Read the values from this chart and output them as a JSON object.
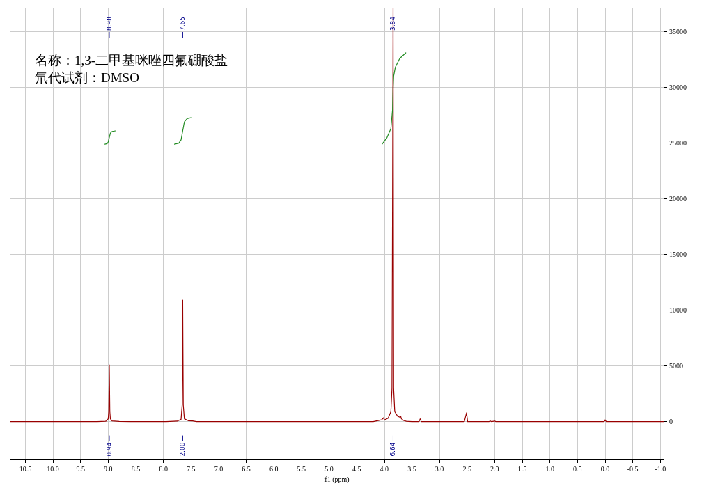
{
  "chart_data": {
    "type": "line",
    "title": "名称：1,3-二甲基咪唑四氟硼酸盐",
    "subtitle": "氘代试剂：DMSO",
    "xlabel": "f1 (ppm)",
    "xlim": [
      10.77,
      -1.06
    ],
    "xticks": [
      10.5,
      {
        "value": 10,
        "label": "10.0"
      },
      9.5,
      {
        "value": 9,
        "label": "9.0"
      },
      8.5,
      {
        "value": 8,
        "label": "8.0"
      },
      7.5,
      {
        "value": 7,
        "label": "7.0"
      },
      6.5,
      {
        "value": 6,
        "label": "6.0"
      },
      5.5,
      {
        "value": 5,
        "label": "5.0"
      },
      4.5,
      {
        "value": 4,
        "label": "4.0"
      },
      3.5,
      {
        "value": 3,
        "label": "3.0"
      },
      2.5,
      {
        "value": 2,
        "label": "2.0"
      },
      1.5,
      {
        "value": 1,
        "label": "1.0"
      },
      0.5,
      {
        "value": 0,
        "label": "0.0"
      },
      -0.5,
      {
        "value": -1,
        "label": "-1.0"
      }
    ],
    "ylim": [
      -3400,
      37100
    ],
    "yticks": [
      0,
      5000,
      10000,
      15000,
      20000,
      25000,
      30000,
      35000
    ],
    "grid": true,
    "marker": "none",
    "line_style": "solid",
    "series": [
      {
        "color": "#990000",
        "x": [
          10.77,
          9.2,
          9.05,
          9.03,
          9.0,
          8.99,
          8.98,
          8.97,
          8.96,
          8.93,
          8.8,
          8.6,
          7.95,
          7.75,
          7.68,
          7.66,
          7.65,
          7.64,
          7.62,
          7.55,
          7.47,
          7.4,
          4.2,
          4.05,
          4.01,
          4.0,
          3.93,
          3.88,
          3.86,
          3.84,
          3.83,
          3.81,
          3.76,
          3.72,
          3.7,
          3.69,
          3.65,
          3.6,
          3.5,
          3.37,
          3.35,
          3.33,
          2.55,
          2.51,
          2.49,
          2.1,
          2.08,
          2.06,
          2.0,
          1.98,
          0.02,
          0.0,
          -0.02,
          -1.06
        ],
        "values": [
          0,
          0,
          30,
          60,
          250,
          900,
          5100,
          900,
          250,
          60,
          20,
          0,
          0,
          40,
          200,
          1500,
          10900,
          1500,
          250,
          80,
          60,
          0,
          0,
          150,
          350,
          150,
          300,
          900,
          3000,
          37100,
          3000,
          900,
          500,
          400,
          450,
          250,
          100,
          30,
          0,
          0,
          250,
          0,
          0,
          800,
          0,
          0,
          60,
          0,
          50,
          0,
          0,
          150,
          0,
          0
        ]
      },
      {
        "color": "#228b22",
        "x": [
          9.06,
          9.02,
          9.0,
          8.98,
          8.96,
          8.93,
          8.87
        ],
        "values": [
          24900,
          24950,
          25100,
          25500,
          25900,
          26050,
          26100
        ]
      },
      {
        "color": "#228b22",
        "x": [
          7.8,
          7.72,
          7.68,
          7.65,
          7.62,
          7.57,
          7.49
        ],
        "values": [
          24900,
          25000,
          25300,
          26100,
          26900,
          27200,
          27300
        ]
      },
      {
        "color": "#228b22",
        "x": [
          4.04,
          3.95,
          3.88,
          3.85,
          3.84,
          3.83,
          3.8,
          3.72,
          3.61
        ],
        "values": [
          24900,
          25500,
          26300,
          28000,
          30000,
          31000,
          31800,
          32600,
          33100
        ]
      }
    ],
    "annotations": [
      "8.98",
      "7.65",
      "3.84",
      {
        "text": "0.94",
        "x": 8.98
      },
      {
        "text": "2.00",
        "x": 7.65
      },
      {
        "text": "6.64",
        "x": 3.84
      }
    ]
  }
}
